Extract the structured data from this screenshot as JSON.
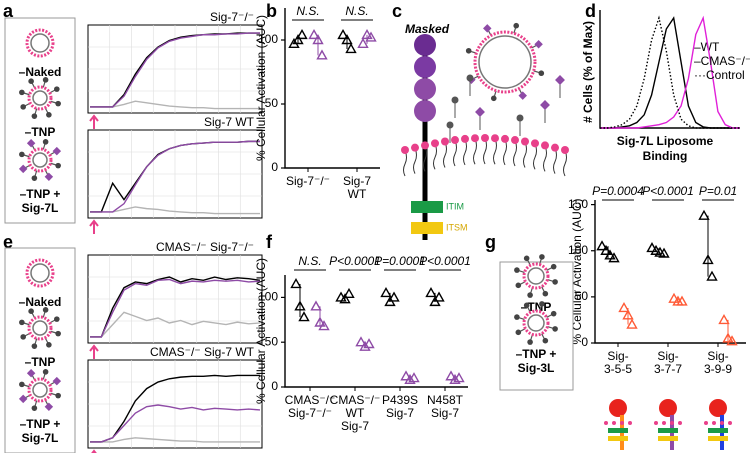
{
  "a": {
    "letter": "a",
    "legend": [
      {
        "lines": [
          "–Naked"
        ],
        "color": "#8c8c8c"
      },
      {
        "lines": [
          "–TNP"
        ],
        "color": "#000000"
      },
      {
        "lines": [
          "–TNP +",
          "Sig-7L"
        ],
        "color": "#8e4ba6"
      }
    ],
    "traces": [
      {
        "title": "Sig-7⁻/⁻",
        "series": [
          {
            "color": "#b4b4b4",
            "values": [
              5,
              5,
              5,
              8,
              12,
              10,
              8,
              6,
              5,
              4,
              4,
              3,
              3,
              3,
              3,
              3
            ]
          },
          {
            "color": "#000000",
            "values": [
              5,
              5,
              5,
              20,
              45,
              65,
              78,
              86,
              90,
              92,
              93,
              94,
              94,
              95,
              95,
              95
            ]
          },
          {
            "color": "#8e4ba6",
            "values": [
              5,
              5,
              5,
              18,
              42,
              63,
              77,
              85,
              89,
              91,
              93,
              93,
              94,
              94,
              95,
              95
            ]
          }
        ]
      },
      {
        "title": "Sig-7 WT",
        "series": [
          {
            "color": "#b4b4b4",
            "values": [
              5,
              5,
              5,
              8,
              11,
              9,
              8,
              6,
              5,
              4,
              4,
              3,
              3,
              3,
              3,
              3
            ]
          },
          {
            "color": "#000000",
            "values": [
              5,
              5,
              40,
              20,
              40,
              60,
              75,
              82,
              86,
              88,
              89,
              90,
              90,
              90,
              91,
              91
            ]
          },
          {
            "color": "#8e4ba6",
            "values": [
              5,
              5,
              5,
              15,
              38,
              60,
              74,
              82,
              86,
              88,
              89,
              90,
              90,
              90,
              91,
              91
            ]
          }
        ]
      }
    ]
  },
  "b": {
    "letter": "b",
    "ylabel": "% Cellular Activation (AUC)",
    "ylim": [
      0,
      125
    ],
    "yticks": [
      0,
      50,
      100
    ],
    "colors": [
      "#000000",
      "#8e4ba6"
    ],
    "categories": [
      {
        "label": [
          "Sig-7⁻/⁻"
        ],
        "annotation": "N.S.",
        "groups": [
          [
            97,
            100,
            104
          ],
          [
            104,
            100,
            88
          ]
        ]
      },
      {
        "label": [
          "Sig-7",
          "WT"
        ],
        "annotation": "N.S.",
        "groups": [
          [
            104,
            100,
            93
          ],
          [
            97,
            104,
            102
          ]
        ]
      }
    ]
  },
  "c": {
    "letter": "c",
    "title": "Masked",
    "boxes": [
      "ITIM",
      "ITSM"
    ]
  },
  "d": {
    "letter": "d",
    "ylabel": "# Cells (% of Max)",
    "xlabel": [
      "Sig-7L Liposome",
      "Binding"
    ],
    "series": [
      {
        "name": "–WT",
        "color": "#000000",
        "dash": "solid",
        "values": [
          0,
          0,
          0,
          1,
          2,
          5,
          12,
          30,
          60,
          90,
          100,
          60,
          20,
          5,
          1,
          0,
          0,
          0,
          0,
          0
        ]
      },
      {
        "name": "–CMAS⁻/⁻",
        "color": "#e020d8",
        "dash": "solid",
        "values": [
          0,
          0,
          0,
          0,
          0,
          0,
          1,
          2,
          3,
          5,
          10,
          20,
          45,
          85,
          100,
          60,
          15,
          3,
          0,
          0
        ]
      },
      {
        "name": "···Control",
        "color": "#000000",
        "dash": "dotted",
        "values": [
          0,
          0,
          1,
          3,
          8,
          20,
          45,
          80,
          100,
          70,
          30,
          8,
          2,
          0,
          0,
          0,
          0,
          0,
          0,
          0
        ]
      }
    ]
  },
  "e": {
    "letter": "e",
    "legend": [
      {
        "lines": [
          "–Naked"
        ],
        "color": "#8c8c8c"
      },
      {
        "lines": [
          "–TNP"
        ],
        "color": "#000000"
      },
      {
        "lines": [
          "–TNP +",
          "Sig-7L"
        ],
        "color": "#8e4ba6"
      }
    ],
    "traces": [
      {
        "title": "CMAS⁻/⁻ Sig-7⁻/⁻",
        "series": [
          {
            "color": "#b4b4b4",
            "values": [
              5,
              5,
              20,
              35,
              30,
              25,
              28,
              22,
              25,
              20,
              24,
              22,
              20,
              23,
              21,
              22
            ]
          },
          {
            "color": "#000000",
            "values": [
              5,
              5,
              40,
              65,
              72,
              70,
              75,
              78,
              72,
              76,
              74,
              78,
              75,
              77,
              76,
              74
            ]
          },
          {
            "color": "#8e4ba6",
            "values": [
              5,
              5,
              35,
              62,
              70,
              68,
              74,
              75,
              70,
              73,
              72,
              74,
              73,
              74,
              72,
              73
            ]
          }
        ]
      },
      {
        "title": "CMAS⁻/⁻ Sig-7 WT",
        "series": [
          {
            "color": "#b4b4b4",
            "values": [
              5,
              5,
              5,
              8,
              10,
              9,
              8,
              7,
              6,
              6,
              5,
              5,
              5,
              5,
              5,
              5
            ]
          },
          {
            "color": "#000000",
            "values": [
              5,
              5,
              10,
              30,
              55,
              70,
              78,
              82,
              84,
              85,
              85,
              86,
              85,
              86,
              86,
              86
            ]
          },
          {
            "color": "#8e4ba6",
            "values": [
              5,
              5,
              10,
              25,
              40,
              48,
              50,
              48,
              45,
              47,
              44,
              46,
              45,
              44,
              45,
              44
            ]
          }
        ]
      }
    ]
  },
  "f": {
    "letter": "f",
    "ylabel": "% Cellular Activation (AUC)",
    "ylim": [
      0,
      125
    ],
    "yticks": [
      0,
      50,
      100
    ],
    "colors": [
      "#000000",
      "#8e4ba6"
    ],
    "categories": [
      {
        "label": [
          "CMAS⁻/⁻",
          "Sig-7⁻/⁻"
        ],
        "annotation": "N.S.",
        "groups": [
          [
            115,
            90,
            78
          ],
          [
            90,
            72,
            68
          ]
        ]
      },
      {
        "label": [
          "CMAS⁻/⁻",
          "WT",
          "Sig-7"
        ],
        "annotation": "P<0.0001",
        "groups": [
          [
            100,
            98,
            104
          ],
          [
            50,
            45,
            48
          ]
        ]
      },
      {
        "label": [
          "P439S",
          "Sig-7"
        ],
        "annotation": "P=0.0001",
        "groups": [
          [
            105,
            95,
            100
          ],
          [
            12,
            8,
            10
          ]
        ]
      },
      {
        "label": [
          "N458T",
          "Sig-7"
        ],
        "annotation": "P<0.0001",
        "groups": [
          [
            105,
            95,
            100
          ],
          [
            12,
            8,
            10
          ]
        ]
      }
    ]
  },
  "g": {
    "letter": "g",
    "ylabel": "% Cellular Activation (AUC)",
    "ylim": [
      0,
      155
    ],
    "yticks": [
      0,
      50,
      100,
      150
    ],
    "colors": [
      "#000000",
      "#ff5a36"
    ],
    "legend": [
      {
        "lines": [
          "–TNP"
        ],
        "color": "#000000"
      },
      {
        "lines": [
          "–TNP +",
          "Sig-3L"
        ],
        "color": "#e8231d"
      }
    ],
    "categories": [
      {
        "label": [
          "Sig-",
          "3-5-5"
        ],
        "label_color": "#ff8c1a",
        "annotation": "P=0.0004",
        "groups": [
          [
            105,
            100,
            95,
            92
          ],
          [
            38,
            30,
            20
          ]
        ]
      },
      {
        "label": [
          "Sig-",
          "3-7-7"
        ],
        "label_color": "#8e4ba6",
        "annotation": "P<0.0001",
        "groups": [
          [
            103,
            100,
            98,
            97
          ],
          [
            48,
            45,
            45
          ]
        ]
      },
      {
        "label": [
          "Sig-",
          "3-9-9"
        ],
        "label_color": "#2040e0",
        "annotation": "P=0.01",
        "groups": [
          [
            138,
            90,
            72
          ],
          [
            25,
            5,
            2
          ]
        ]
      }
    ]
  }
}
